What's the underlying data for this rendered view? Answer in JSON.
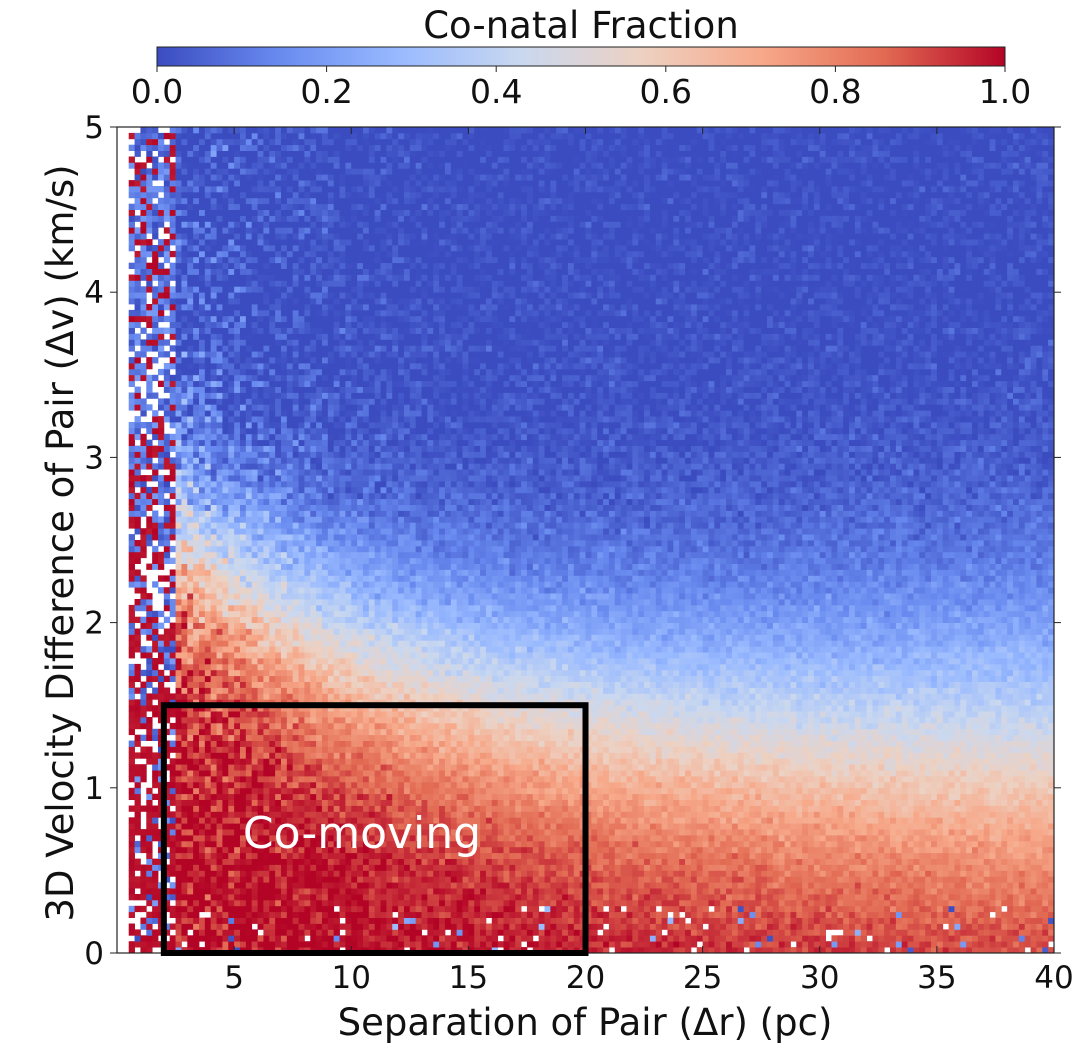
{
  "chart_data": {
    "type": "heatmap",
    "title": "",
    "xlabel": "Separation of Pair (Δr) (pc)",
    "ylabel": "3D Velocity Difference of Pair (Δv) (km/s)",
    "xlim": [
      0,
      40
    ],
    "ylim": [
      0,
      5
    ],
    "xticks": [
      5,
      10,
      15,
      20,
      25,
      30,
      35,
      40
    ],
    "yticks": [
      0,
      1,
      2,
      3,
      4,
      5
    ],
    "colorbar": {
      "label": "Co-natal Fraction",
      "range": [
        0.0,
        1.0
      ],
      "ticks": [
        "0.0",
        "0.2",
        "0.4",
        "0.6",
        "0.8",
        "1.0"
      ],
      "colormap": "coolwarm",
      "colors": [
        "#3b4cc0",
        "#688aef",
        "#99baff",
        "#c9d8f0",
        "#edd1c2",
        "#f7a889",
        "#e26a53",
        "#b40426"
      ]
    },
    "field_description": "Co-natal fraction is near 1.0 at small velocity difference and small separation, and falls toward 0.0 at large velocity difference; the transition (fraction 0.5) runs from about Δv 2.5 km/s at 3 pc down to about 1.2 km/s at 40 pc; data are sparse and noisy below about Δr 2 pc.",
    "region": {
      "label": "Co-moving",
      "x_range": [
        2,
        20
      ],
      "y_range": [
        0,
        1.5
      ],
      "border_color": "#000000",
      "label_color": "#ffffff"
    }
  }
}
